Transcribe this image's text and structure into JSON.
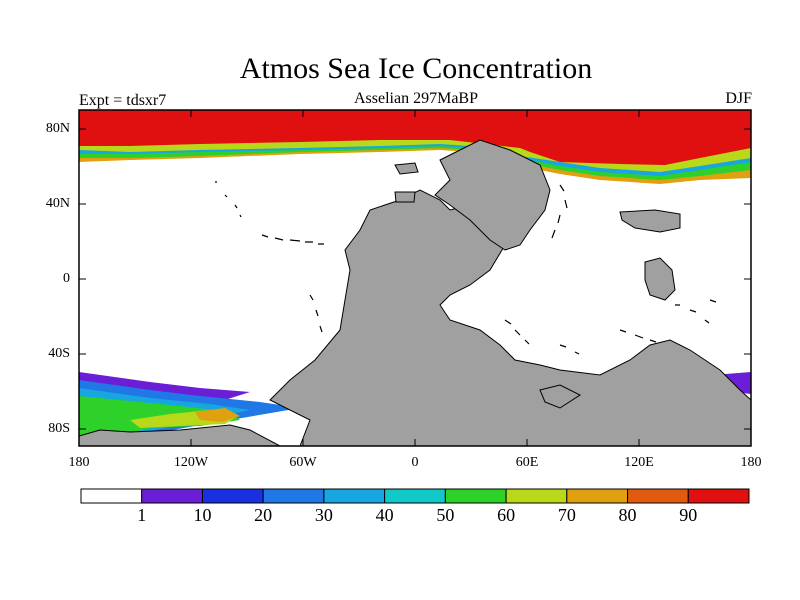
{
  "title": "Atmos Sea Ice Concentration",
  "experiment": "Expt = tdsxr7",
  "stage": "Asselian 297MaBP",
  "season": "DJF",
  "lat_ticks": [
    "80N",
    "40N",
    "0",
    "40S",
    "80S"
  ],
  "lon_ticks": [
    "180",
    "120W",
    "60W",
    "0",
    "60E",
    "120E",
    "180"
  ],
  "colorbar": {
    "labels": [
      "1",
      "10",
      "20",
      "30",
      "40",
      "50",
      "60",
      "70",
      "80",
      "90"
    ],
    "colors": [
      "#ffffff",
      "#6a1fd6",
      "#1a2fe0",
      "#1f78e6",
      "#17a6e0",
      "#10c8c8",
      "#2ed02a",
      "#b8d81a",
      "#e0a010",
      "#e05a10",
      "#e01010"
    ]
  },
  "colors": {
    "land": "#a0a0a0",
    "ocean": "#ffffff",
    "coast": "#000000"
  }
}
